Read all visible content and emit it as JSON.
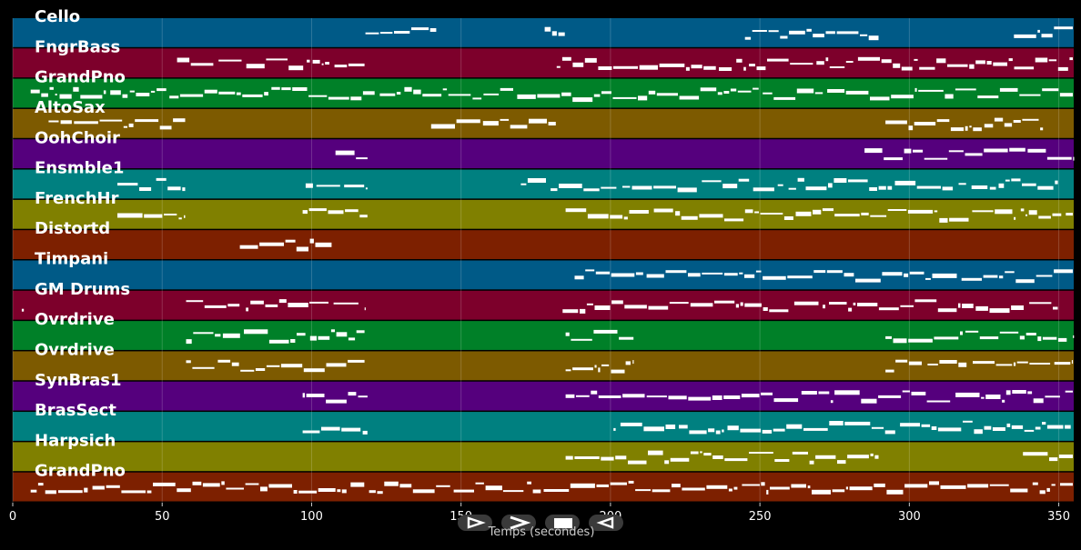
{
  "chart_data": {
    "type": "piano-roll",
    "xlabel": "Temps (secondes)",
    "xlim": [
      0,
      355
    ],
    "xticks": [
      0,
      50,
      100,
      150,
      200,
      250,
      300,
      350
    ],
    "grid": true,
    "colors": [
      "#005a87",
      "#7d002b",
      "#008028",
      "#7d5a00",
      "#55007d",
      "#008080",
      "#808000",
      "#7d2000"
    ],
    "tracks": [
      {
        "name": "Cello",
        "segments": [
          [
            118,
            142
          ],
          [
            178,
            185
          ],
          [
            245,
            290
          ],
          [
            335,
            355
          ]
        ]
      },
      {
        "name": "FngrBass",
        "segments": [
          [
            55,
            118
          ],
          [
            182,
            355
          ]
        ]
      },
      {
        "name": "GrandPno",
        "segments": [
          [
            6,
            355
          ]
        ]
      },
      {
        "name": "AltoSax",
        "segments": [
          [
            12,
            58
          ],
          [
            140,
            182
          ],
          [
            292,
            345
          ]
        ]
      },
      {
        "name": "OohChoir",
        "segments": [
          [
            108,
            119
          ],
          [
            285,
            355
          ]
        ]
      },
      {
        "name": "Ensmble1",
        "segments": [
          [
            35,
            58
          ],
          [
            98,
            119
          ],
          [
            170,
            350
          ]
        ]
      },
      {
        "name": "FrenchHr",
        "segments": [
          [
            35,
            58
          ],
          [
            97,
            119
          ],
          [
            185,
            355
          ]
        ]
      },
      {
        "name": "Distortd",
        "segments": [
          [
            76,
            107
          ]
        ]
      },
      {
        "name": "Timpani",
        "segments": [
          [
            188,
            355
          ]
        ]
      },
      {
        "name": "GM Drums",
        "segments": [
          [
            3,
            4
          ],
          [
            58,
            118
          ],
          [
            184,
            350
          ]
        ]
      },
      {
        "name": "Ovrdrive",
        "segments": [
          [
            58,
            118
          ],
          [
            185,
            208
          ],
          [
            292,
            355
          ]
        ]
      },
      {
        "name": "Ovrdrive",
        "segments": [
          [
            58,
            118
          ],
          [
            185,
            208
          ],
          [
            292,
            355
          ]
        ]
      },
      {
        "name": "SynBras1",
        "segments": [
          [
            97,
            119
          ],
          [
            185,
            355
          ]
        ]
      },
      {
        "name": "BrasSect",
        "segments": [
          [
            97,
            119
          ],
          [
            201,
            355
          ]
        ]
      },
      {
        "name": "Harpsich",
        "segments": [
          [
            185,
            290
          ],
          [
            338,
            355
          ]
        ]
      },
      {
        "name": "GrandPno",
        "segments": [
          [
            6,
            355
          ]
        ]
      }
    ]
  },
  "controls": [
    {
      "name": "play-button",
      "icon": "play-outline-icon"
    },
    {
      "name": "forward-button",
      "icon": "chevron-right-icon"
    },
    {
      "name": "stop-button",
      "icon": "stop-icon"
    },
    {
      "name": "rewind-button",
      "icon": "rewind-icon"
    }
  ]
}
